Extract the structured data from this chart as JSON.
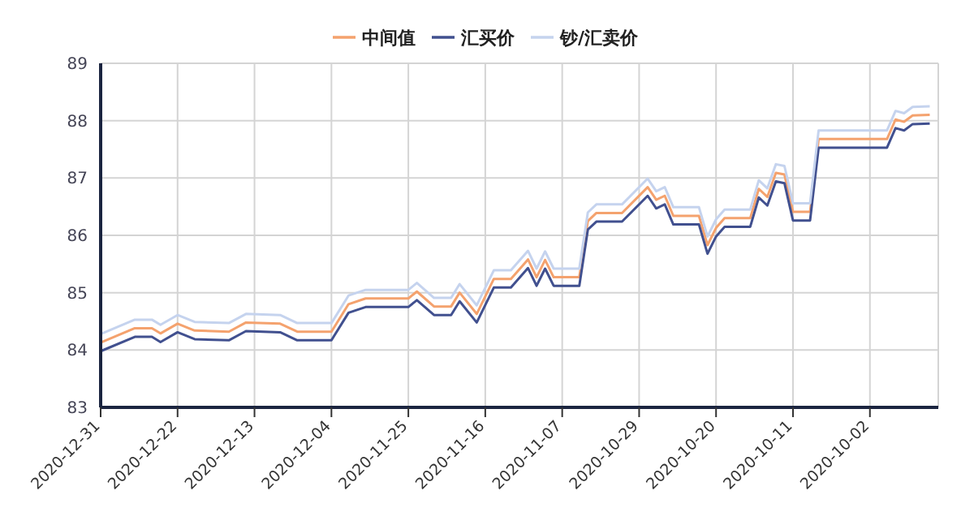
{
  "chart_data": {
    "type": "line",
    "x": [
      "2020-12-31",
      "2020-12-27",
      "2020-12-25",
      "2020-12-24",
      "2020-12-22",
      "2020-12-20",
      "2020-12-16",
      "2020-12-14",
      "2020-12-10",
      "2020-12-08",
      "2020-12-04",
      "2020-12-02",
      "2020-11-30",
      "2020-11-25",
      "2020-11-24",
      "2020-11-22",
      "2020-11-20",
      "2020-11-19",
      "2020-11-17",
      "2020-11-15",
      "2020-11-13",
      "2020-11-11",
      "2020-11-10",
      "2020-11-09",
      "2020-11-08",
      "2020-11-05",
      "2020-11-04",
      "2020-11-03",
      "2020-10-31",
      "2020-10-28",
      "2020-10-27",
      "2020-10-26",
      "2020-10-25",
      "2020-10-22",
      "2020-10-21",
      "2020-10-20",
      "2020-10-19",
      "2020-10-16",
      "2020-10-15",
      "2020-10-14",
      "2020-10-13",
      "2020-10-12",
      "2020-10-11",
      "2020-10-09",
      "2020-10-08",
      "2020-09-30",
      "2020-09-29",
      "2020-09-28",
      "2020-09-27",
      "2020-09-25"
    ],
    "series": [
      {
        "name": "中间值",
        "color": "#f4a26e",
        "values": [
          84.13,
          84.38,
          84.38,
          84.29,
          84.46,
          84.34,
          84.32,
          84.48,
          84.46,
          84.32,
          84.32,
          84.8,
          84.9,
          84.9,
          85.02,
          84.76,
          84.76,
          85.0,
          84.63,
          85.24,
          85.24,
          85.58,
          85.27,
          85.57,
          85.27,
          85.27,
          86.25,
          86.39,
          86.39,
          86.84,
          86.62,
          86.69,
          86.34,
          86.34,
          85.83,
          86.13,
          86.3,
          86.3,
          86.81,
          86.67,
          87.09,
          87.06,
          86.41,
          86.41,
          87.68,
          87.68,
          88.02,
          87.98,
          88.09,
          88.1
        ]
      },
      {
        "name": "汇买价",
        "color": "#41508f",
        "values": [
          83.98,
          84.23,
          84.23,
          84.14,
          84.31,
          84.19,
          84.17,
          84.33,
          84.31,
          84.17,
          84.17,
          84.65,
          84.75,
          84.75,
          84.87,
          84.61,
          84.61,
          84.85,
          84.48,
          85.09,
          85.09,
          85.43,
          85.12,
          85.42,
          85.12,
          85.12,
          86.1,
          86.24,
          86.24,
          86.69,
          86.47,
          86.54,
          86.19,
          86.19,
          85.68,
          85.98,
          86.15,
          86.15,
          86.66,
          86.52,
          86.94,
          86.91,
          86.26,
          86.26,
          87.53,
          87.53,
          87.87,
          87.83,
          87.94,
          87.95
        ]
      },
      {
        "name": "钞/汇卖价",
        "color": "#c5d3ee",
        "values": [
          84.28,
          84.53,
          84.53,
          84.44,
          84.61,
          84.49,
          84.47,
          84.63,
          84.61,
          84.47,
          84.47,
          84.95,
          85.05,
          85.05,
          85.17,
          84.91,
          84.91,
          85.15,
          84.78,
          85.39,
          85.39,
          85.73,
          85.42,
          85.72,
          85.42,
          85.42,
          86.4,
          86.54,
          86.54,
          86.99,
          86.77,
          86.84,
          86.49,
          86.49,
          85.98,
          86.28,
          86.45,
          86.45,
          86.96,
          86.82,
          87.24,
          87.21,
          86.56,
          86.56,
          87.83,
          87.83,
          88.17,
          88.13,
          88.24,
          88.25
        ]
      }
    ],
    "xlim": [
      "2020-12-31",
      "2020-09-24"
    ],
    "xticks": [
      "2020-12-31",
      "2020-12-22",
      "2020-12-13",
      "2020-12-04",
      "2020-11-25",
      "2020-11-16",
      "2020-11-07",
      "2020-10-29",
      "2020-10-20",
      "2020-10-11",
      "2020-10-02"
    ],
    "ylim": [
      83,
      89
    ],
    "yticks": [
      83,
      84,
      85,
      86,
      87,
      88,
      89
    ],
    "grid": true,
    "legend": "top",
    "marker": "none",
    "line_style": "solid"
  }
}
